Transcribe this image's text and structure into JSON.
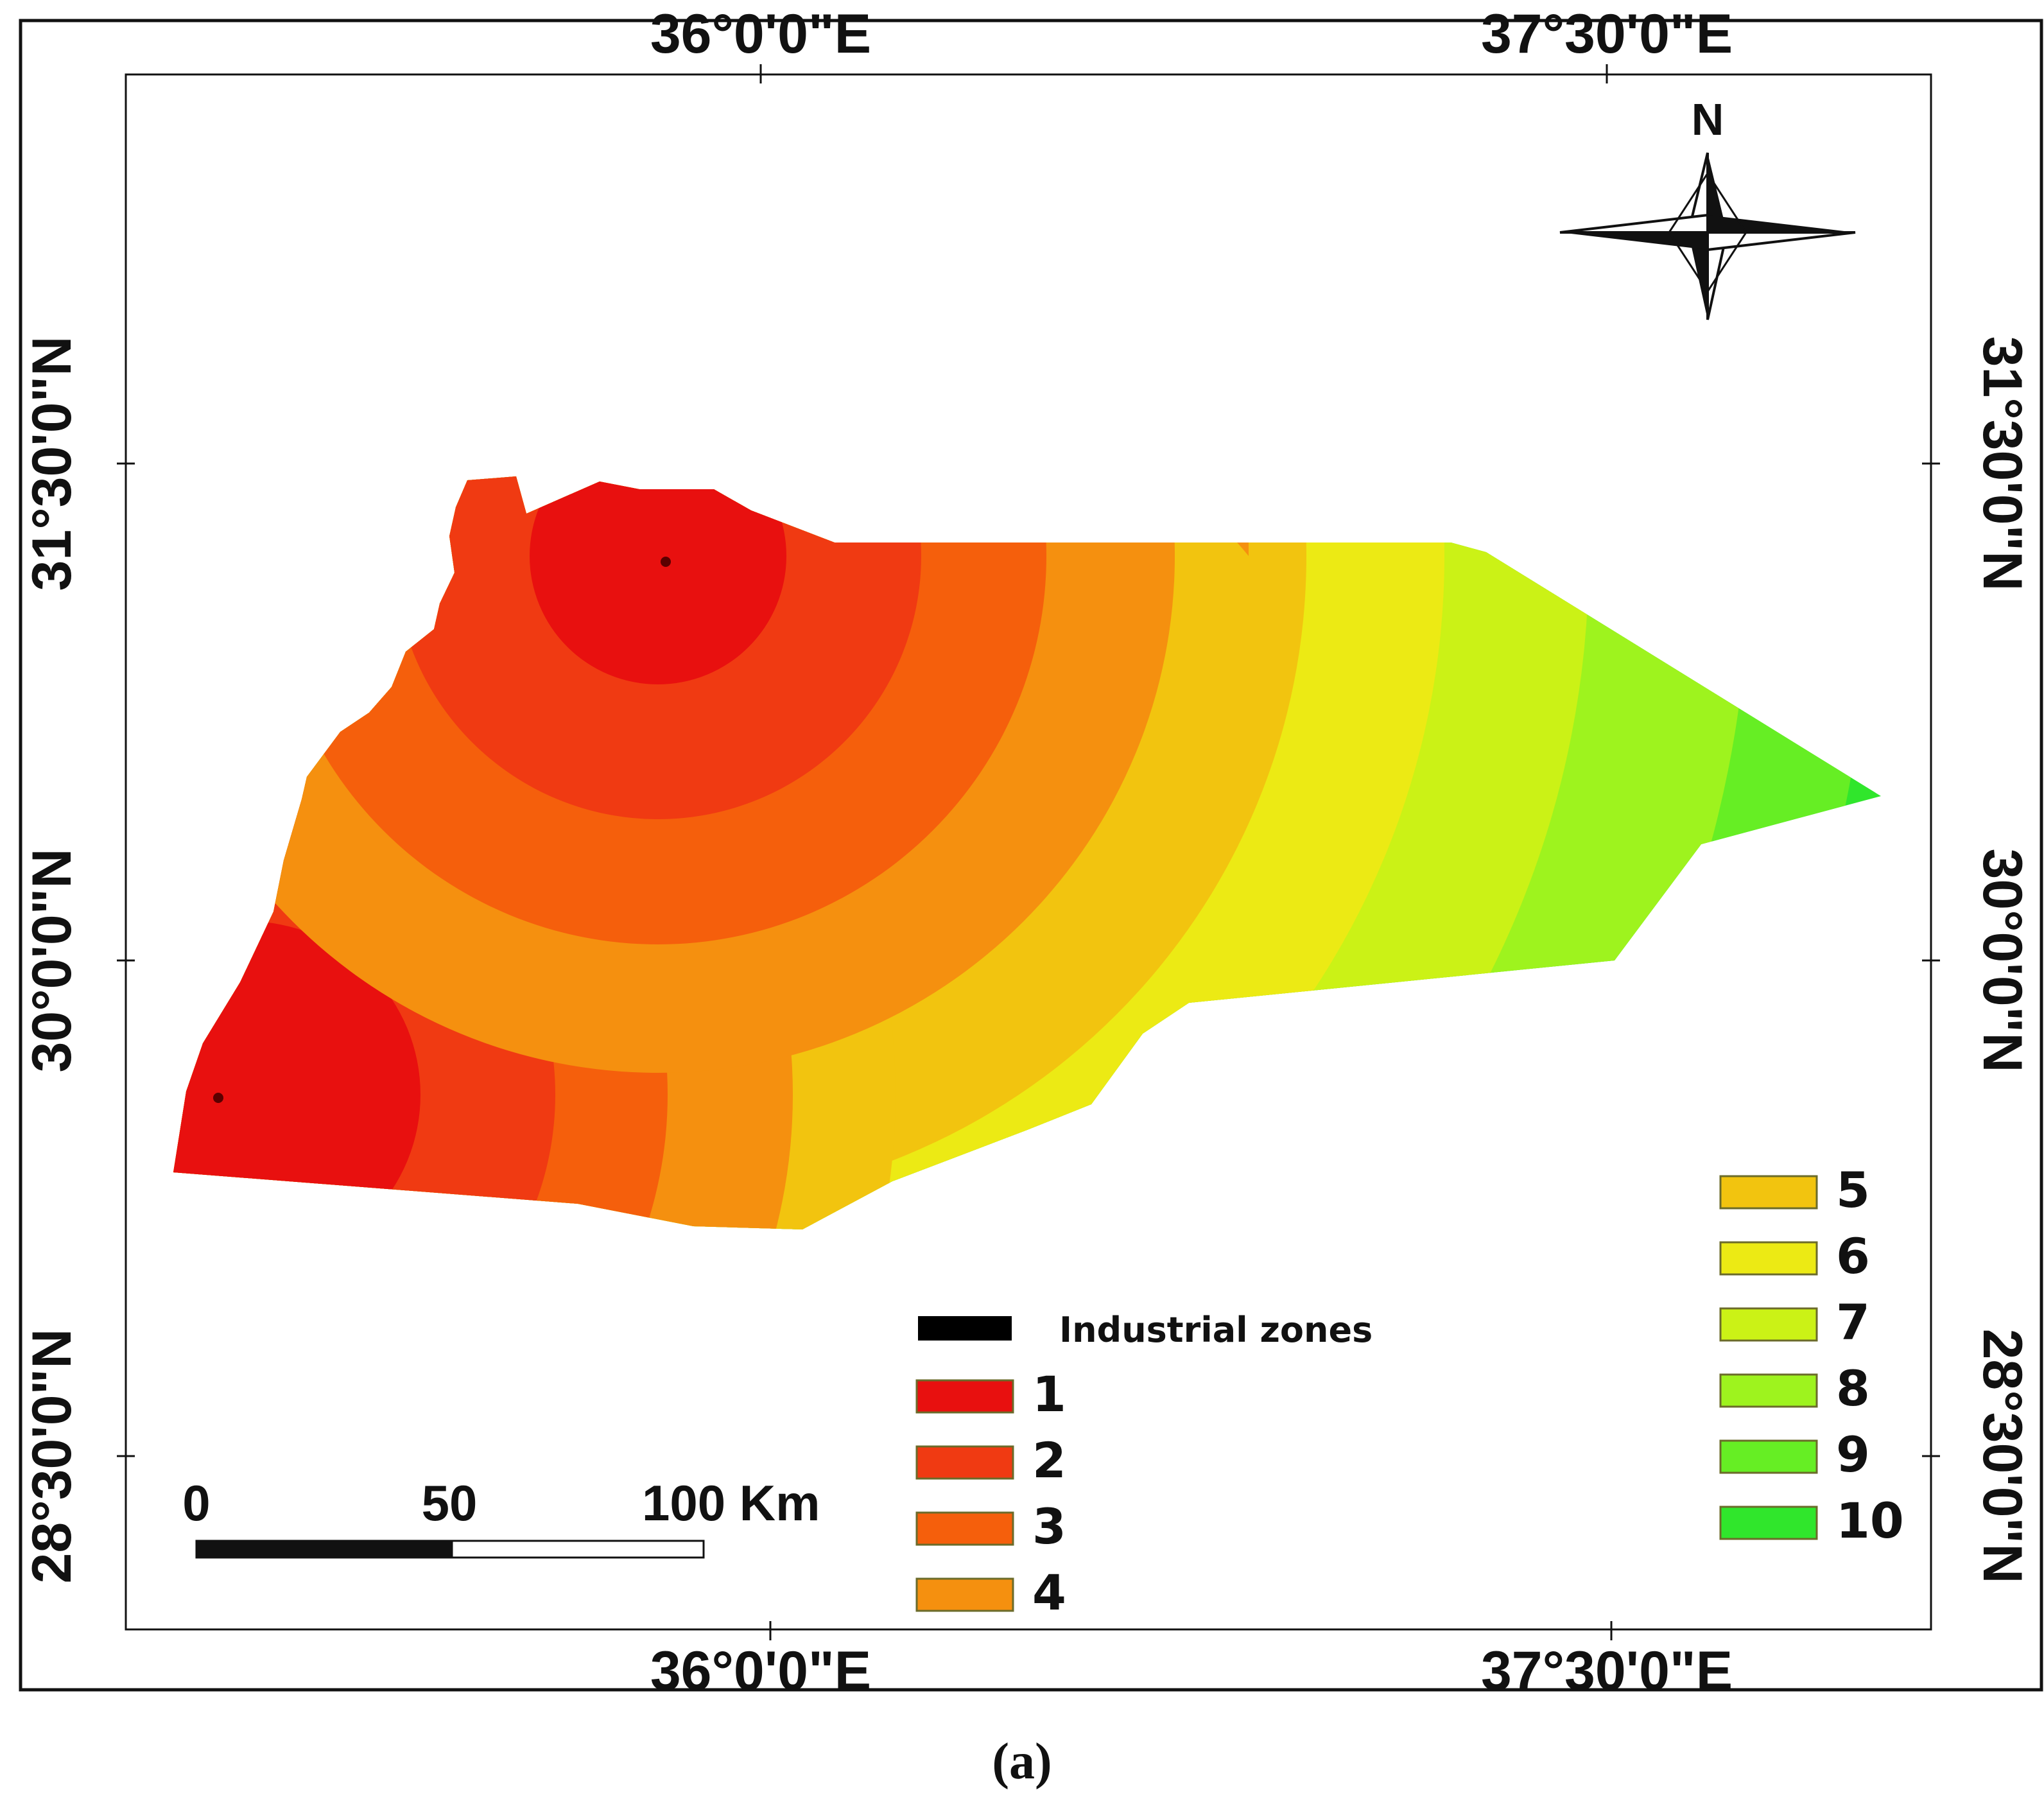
{
  "caption": "(a)",
  "grid": {
    "lon_top": [
      "36°0'0\"E",
      "37°30'0\"E"
    ],
    "lon_bottom": [
      "36°0'0\"E",
      "37°30'0\"E"
    ],
    "lat_left": [
      "31°30'0\"N",
      "30°0'0\"N",
      "28°30'0\"N"
    ],
    "lat_right": [
      "31°30'0\"N",
      "30°0'0\"N",
      "28°30'0\"N"
    ]
  },
  "north_arrow": {
    "label": "N",
    "icon": "north-arrow-icon"
  },
  "scale_bar": {
    "labels": [
      "0",
      "50",
      "100 Km"
    ]
  },
  "legend": {
    "industrial": {
      "label": "Industrial zones",
      "color": "#000000"
    },
    "classes": [
      {
        "label": "1",
        "color": "#e8100f"
      },
      {
        "label": "2",
        "color": "#f03a12"
      },
      {
        "label": "3",
        "color": "#f55f0c"
      },
      {
        "label": "4",
        "color": "#f5900f"
      },
      {
        "label": "5",
        "color": "#f2c40f"
      },
      {
        "label": "6",
        "color": "#ecea14"
      },
      {
        "label": "7",
        "color": "#cbf216"
      },
      {
        "label": "8",
        "color": "#9ef31e"
      },
      {
        "label": "9",
        "color": "#66ee24"
      },
      {
        "label": "10",
        "color": "#30e62c"
      }
    ]
  }
}
